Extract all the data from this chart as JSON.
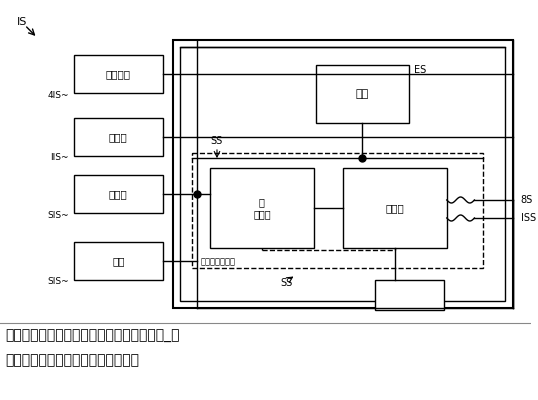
{
  "title_line1": "新能源汽車新型電機的設計及弱磁控制原理_新",
  "title_line2": "能源汽車新型電機的設計及弱磁控制",
  "box1_text": "空速傳干",
  "box2_text": "衣向伏",
  "box3_text": "條率衣",
  "box4_text": "大及",
  "box5_text": "串電",
  "box6_text": "直\n逆斷器",
  "box7_text": "驅串器",
  "feedback_text": "直逆斷器驅動狀",
  "lbl_S1": "IS",
  "lbl_214": "4IS",
  "lbl_211": "IIS",
  "lbl_213": "SIS",
  "lbl_215": "SIS",
  "lbl_S3": "ES",
  "lbl_S5": "SS",
  "lbl_S2": "SS",
  "lbl_28": "8S",
  "lbl_221": "ISS"
}
